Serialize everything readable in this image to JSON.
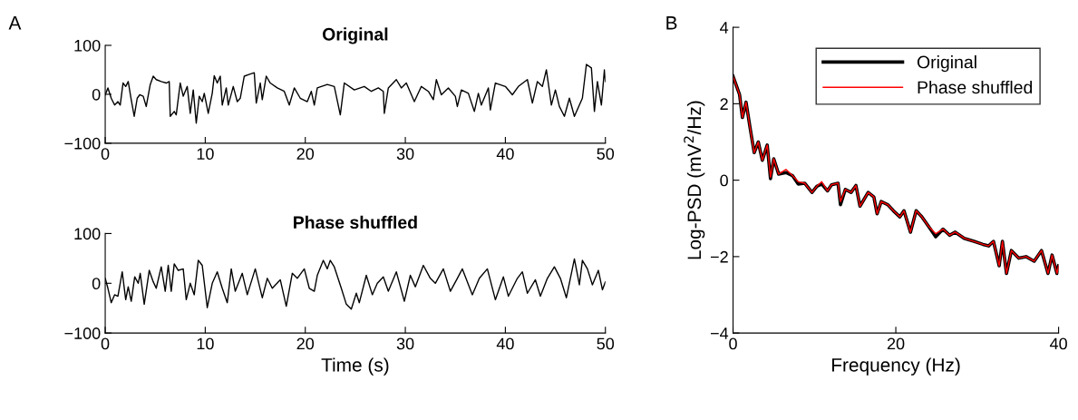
{
  "chart_data": [
    {
      "type": "line",
      "title": "Original",
      "annotations": [
        "A"
      ],
      "xlim": [
        0,
        50
      ],
      "xticks": [
        0,
        10,
        20,
        30,
        40,
        50
      ],
      "ylim": [
        -100,
        100
      ],
      "yticks": [
        -100,
        0,
        100
      ],
      "grid": false,
      "legend": false,
      "marker": "none",
      "line_style": "solid",
      "x": [
        0,
        0.27,
        0.6,
        0.94,
        1.27,
        1.5,
        1.78,
        2.05,
        2.3,
        2.6,
        2.9,
        3.2,
        3.45,
        3.8,
        4.1,
        4.5,
        4.8,
        5.1,
        5.6,
        6.1,
        6.4,
        6.5,
        6.9,
        7.1,
        7.5,
        7.8,
        8.2,
        8.5,
        8.8,
        9.1,
        9.4,
        9.7,
        9.9,
        10.3,
        10.7,
        10.9,
        11.2,
        11.5,
        11.7,
        12.1,
        12.3,
        12.8,
        13.2,
        13.5,
        13.9,
        14.3,
        14.9,
        15.1,
        15.5,
        15.7,
        16.1,
        16.5,
        17.2,
        17.9,
        18.4,
        18.9,
        19.5,
        20.2,
        20.6,
        20.9,
        21.2,
        22.2,
        22.9,
        23.5,
        23.9,
        24.9,
        25.9,
        26.6,
        27.3,
        27.8,
        27.9,
        28.3,
        29.1,
        29.6,
        30.1,
        30.9,
        31.6,
        32.3,
        32.8,
        33.1,
        33.6,
        34.3,
        35,
        35.2,
        35.6,
        36.3,
        36.9,
        37.3,
        37.6,
        38.3,
        38.5,
        39,
        40,
        40.7,
        41.3,
        42.2,
        42.7,
        43.2,
        43.7,
        44.1,
        44.6,
        45,
        45.4,
        45.9,
        46.4,
        46.9,
        47.7,
        48.1,
        48.6,
        48.9,
        49.2,
        49.6,
        49.9,
        50
      ],
      "series": [
        {
          "color": "#000000",
          "values": [
            -1,
            13,
            -8,
            -22,
            -15,
            -22,
            23,
            16,
            26,
            -11,
            -45,
            -8,
            -1,
            -4,
            -25,
            20,
            37,
            30,
            26,
            23,
            26,
            -45,
            -35,
            -42,
            23,
            -4,
            16,
            -39,
            9,
            -59,
            -4,
            -15,
            2,
            -39,
            2,
            38,
            23,
            37,
            -22,
            13,
            -22,
            16,
            -15,
            -8,
            37,
            40,
            44,
            -18,
            23,
            -11,
            37,
            23,
            13,
            6,
            -22,
            13,
            -8,
            -15,
            6,
            -22,
            13,
            20,
            16,
            -42,
            23,
            9,
            16,
            6,
            13,
            6,
            -39,
            13,
            30,
            13,
            23,
            -15,
            16,
            6,
            -11,
            30,
            -1,
            13,
            -4,
            -25,
            9,
            2,
            -35,
            2,
            -22,
            13,
            -32,
            23,
            16,
            -1,
            16,
            30,
            -18,
            26,
            16,
            50,
            -22,
            9,
            -25,
            -45,
            -8,
            -45,
            -8,
            61,
            54,
            -35,
            26,
            -22,
            50,
            26
          ]
        }
      ]
    },
    {
      "type": "line",
      "title": "Phase shuffled",
      "xlabel": "Time (s)",
      "xlim": [
        0,
        50
      ],
      "xticks": [
        0,
        10,
        20,
        30,
        40,
        50
      ],
      "ylim": [
        -100,
        100
      ],
      "yticks": [
        -100,
        0,
        100
      ],
      "grid": false,
      "legend": false,
      "marker": "none",
      "line_style": "solid",
      "x": [
        0,
        0.27,
        0.6,
        0.94,
        1.27,
        1.7,
        2.05,
        2.3,
        2.6,
        2.95,
        3.3,
        3.5,
        3.9,
        4.4,
        4.8,
        5.1,
        5.6,
        6,
        6.3,
        6.6,
        6.9,
        7.3,
        7.8,
        8.1,
        8.5,
        8.9,
        9.3,
        9.7,
        10.2,
        10.7,
        11.2,
        11.7,
        12.2,
        12.6,
        13,
        13.7,
        14.2,
        15,
        15.7,
        16.2,
        16.7,
        17.5,
        18.1,
        18.7,
        19.2,
        19.9,
        20.4,
        20.9,
        21.2,
        21.8,
        22.2,
        22.5,
        22.9,
        23.6,
        24.1,
        24.6,
        25.1,
        25.4,
        26.1,
        26.7,
        27.2,
        27.8,
        28.3,
        29.1,
        29.9,
        30.5,
        31,
        31.8,
        32.5,
        33,
        33.8,
        34.5,
        35.2,
        35.7,
        36.7,
        37.4,
        38.2,
        39,
        39.8,
        40.3,
        41.2,
        41.7,
        42.2,
        43,
        43.5,
        44.2,
        44.9,
        45.5,
        46.1,
        46.9,
        47.4,
        47.7,
        48.2,
        48.7,
        49.3,
        49.7,
        50
      ],
      "series": [
        {
          "color": "#000000",
          "values": [
            10,
            -10,
            -39,
            -23,
            -26,
            23,
            -33,
            -7,
            -36,
            13,
            0,
            20,
            -42,
            26,
            3,
            -10,
            33,
            -16,
            36,
            -16,
            39,
            26,
            29,
            -33,
            0,
            -23,
            46,
            36,
            -49,
            0,
            23,
            -10,
            -39,
            29,
            -16,
            20,
            -23,
            29,
            -29,
            10,
            -10,
            7,
            -46,
            20,
            10,
            29,
            -10,
            -16,
            16,
            46,
            29,
            46,
            33,
            -10,
            -42,
            -52,
            -20,
            -39,
            16,
            -23,
            0,
            13,
            -16,
            23,
            -36,
            16,
            -7,
            36,
            10,
            0,
            29,
            -16,
            10,
            29,
            -23,
            10,
            29,
            -33,
            13,
            -26,
            10,
            23,
            -20,
            7,
            -26,
            10,
            33,
            10,
            -29,
            49,
            -3,
            46,
            29,
            -3,
            26,
            -13,
            3
          ]
        }
      ]
    },
    {
      "type": "line",
      "xlabel": "Frequency (Hz)",
      "ylabel": "Log-PSD (mV$^{2}$/Hz)",
      "annotations": [
        "B"
      ],
      "xlim": [
        0,
        40
      ],
      "xticks": [
        0,
        20,
        40
      ],
      "ylim": [
        -4,
        4
      ],
      "yticks": [
        -4,
        -2,
        0,
        2,
        4
      ],
      "grid": false,
      "legend": "top right",
      "marker": "none",
      "line_style": "solid",
      "x": [
        0,
        0.4,
        0.8,
        1.15,
        1.6,
        2.1,
        2.6,
        3.1,
        3.6,
        4.2,
        4.6,
        5.0,
        5.6,
        6.5,
        7.3,
        8.0,
        8.8,
        9.7,
        10.3,
        10.9,
        11.6,
        12.1,
        12.9,
        13.2,
        13.8,
        14.5,
        15.1,
        15.6,
        16.6,
        17.3,
        17.7,
        18.2,
        19.0,
        19.7,
        20.5,
        21.0,
        21.8,
        22.5,
        23.2,
        24.0,
        24.9,
        25.8,
        26.6,
        27.3,
        28.4,
        29.6,
        30.7,
        31.4,
        32.0,
        32.7,
        33.1,
        33.6,
        34.2,
        35.1,
        36.0,
        37.0,
        37.9,
        38.7,
        39.2,
        39.8,
        40
      ],
      "series": [
        {
          "name": "Original",
          "color": "#000000",
          "values": [
            2.72,
            2.48,
            2.24,
            1.64,
            2.04,
            1.36,
            0.72,
            1.0,
            0.52,
            0.92,
            0.04,
            0.56,
            0.16,
            0.2,
            0.12,
            -0.1,
            -0.08,
            -0.32,
            -0.16,
            -0.1,
            -0.28,
            -0.12,
            -0.08,
            -0.64,
            -0.24,
            -0.32,
            -0.14,
            -0.68,
            -0.32,
            -0.44,
            -0.88,
            -0.56,
            -0.64,
            -0.8,
            -0.96,
            -0.8,
            -1.36,
            -0.8,
            -0.96,
            -1.2,
            -1.48,
            -1.28,
            -1.44,
            -1.36,
            -1.52,
            -1.6,
            -1.68,
            -1.72,
            -1.6,
            -2.24,
            -1.6,
            -2.44,
            -1.84,
            -2.04,
            -2.0,
            -2.12,
            -1.84,
            -2.44,
            -1.96,
            -2.44,
            -2.24
          ]
        },
        {
          "name": "Phase shuffled",
          "color": "#ff0000",
          "values": [
            2.72,
            2.48,
            2.24,
            1.64,
            2.04,
            1.36,
            0.72,
            1.0,
            0.52,
            0.92,
            0.08,
            0.56,
            0.16,
            0.28,
            0.12,
            -0.04,
            -0.08,
            -0.32,
            -0.16,
            -0.04,
            -0.28,
            -0.12,
            -0.08,
            -0.56,
            -0.24,
            -0.32,
            -0.14,
            -0.68,
            -0.32,
            -0.44,
            -0.88,
            -0.56,
            -0.64,
            -0.8,
            -0.96,
            -0.8,
            -1.36,
            -0.8,
            -0.96,
            -1.2,
            -1.4,
            -1.28,
            -1.44,
            -1.36,
            -1.52,
            -1.6,
            -1.68,
            -1.72,
            -1.6,
            -2.24,
            -1.6,
            -2.44,
            -1.84,
            -2.04,
            -2.0,
            -2.12,
            -1.84,
            -2.44,
            -1.96,
            -2.44,
            -2.24
          ]
        }
      ]
    }
  ]
}
